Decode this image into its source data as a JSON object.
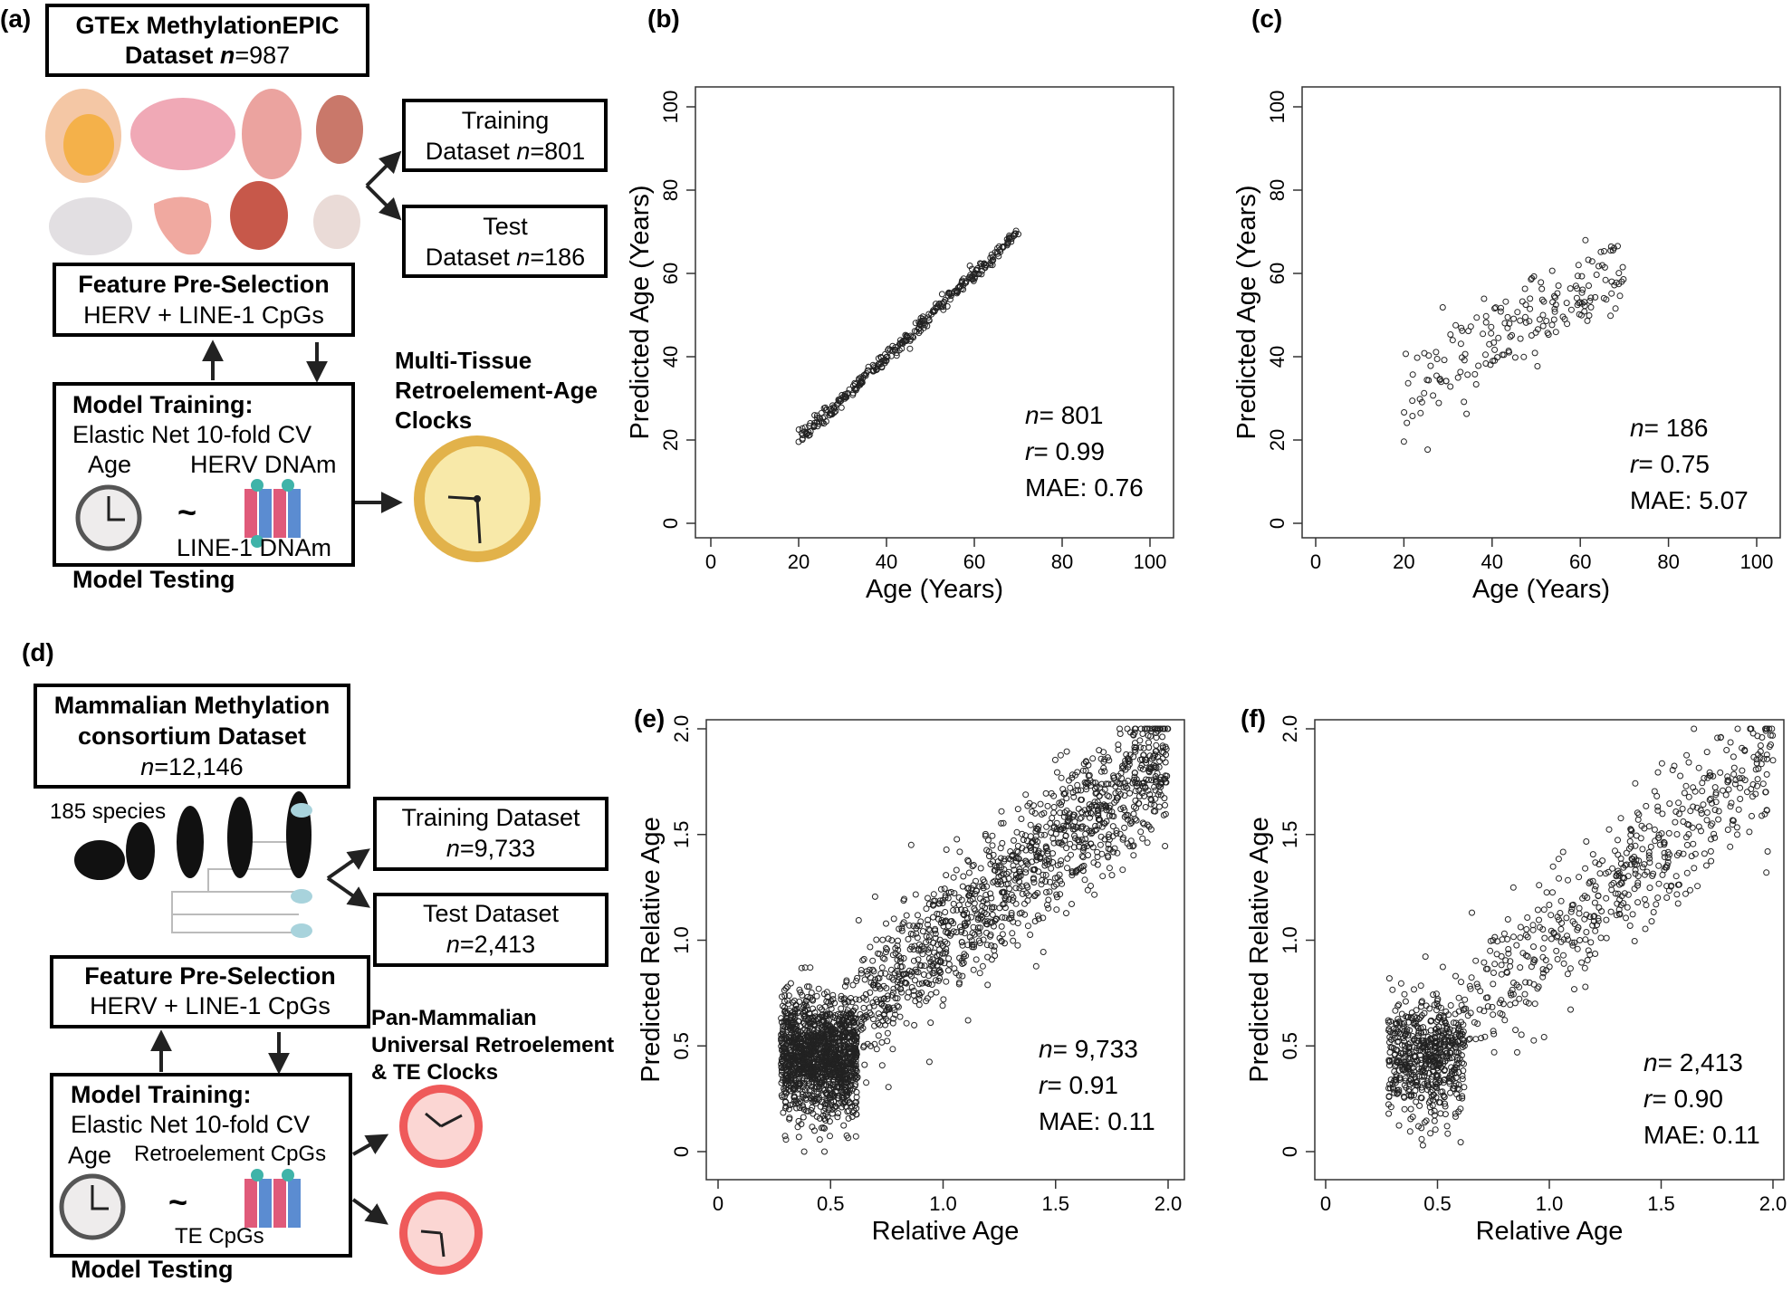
{
  "panel_labels": {
    "a": "(a)",
    "b": "(b)",
    "c": "(c)",
    "d": "(d)",
    "e": "(e)",
    "f": "(f)"
  },
  "workflow_a": {
    "dataset_line1": "GTEx MethylationEPIC",
    "dataset_line2_prefix": "Dataset ",
    "dataset_n": "n",
    "dataset_value": "=987",
    "training_line1": "Training",
    "training_line2_prefix": "Dataset ",
    "training_n": "n",
    "training_value": "=801",
    "test_line1": "Test",
    "test_line2_prefix": "Dataset ",
    "test_n": "n",
    "test_value": "=186",
    "feature_title": "Feature Pre-Selection",
    "feature_sub": "HERV + LINE-1 CpGs",
    "model_title": "Model Training:",
    "model_sub": "Elastic Net 10-fold CV",
    "age_label": "Age",
    "herv_label": "HERV DNAm",
    "tilde": "~",
    "line1_label": "LINE-1 DNAm",
    "model_testing": "Model Testing",
    "clock_title_1": "Multi-Tissue",
    "clock_title_2": "Retroelement-Age",
    "clock_title_3": "Clocks",
    "colors": {
      "clock_gold": "#e2b24a",
      "clock_face": "#f8e9a9",
      "tissue_pink": "#f0a9b6",
      "tissue_orange": "#f4b14a"
    }
  },
  "workflow_d": {
    "dataset_line1": "Mammalian Methylation",
    "dataset_line2": "consortium  Dataset",
    "dataset_n": "n",
    "dataset_value": "=12,146",
    "species": "185 species",
    "training_line1": "Training Dataset",
    "training_n": "n",
    "training_value": "=9,733",
    "test_line1": "Test Dataset",
    "test_n": "n",
    "test_value": "=2,413",
    "feature_title": "Feature Pre-Selection",
    "feature_sub": "HERV + LINE-1 CpGs",
    "model_title": "Model Training:",
    "model_sub": "Elastic Net 10-fold CV",
    "age_label": "Age",
    "retro_label": "Retroelement CpGs",
    "tilde": "~",
    "te_label": "TE CpGs",
    "model_testing": "Model Testing",
    "clock_title_1": "Pan-Mammalian",
    "clock_title_2": "Universal Retroelement",
    "clock_title_3": "& TE Clocks",
    "colors": {
      "clock_red": "#ef5a5a",
      "clock_face": "#fbd6d3",
      "species_blue": "#a8d3dc"
    }
  },
  "chart_data": [
    {
      "id": "b",
      "type": "scatter",
      "xlabel": "Age (Years)",
      "ylabel": "Predicted Age (Years)",
      "xlim": [
        0,
        100
      ],
      "ylim": [
        0,
        100
      ],
      "xticks": [
        "0",
        "20",
        "40",
        "60",
        "80",
        "100"
      ],
      "yticks": [
        "0",
        "20",
        "40",
        "60",
        "80",
        "100"
      ],
      "x_range": [
        20,
        70
      ],
      "slope": 1.0,
      "intercept": 0,
      "noise_sd": 0.9,
      "n_points": 320,
      "stats": {
        "n_label": "n",
        "n_value": "= 801",
        "r_label": "r",
        "r_value": "= 0.99",
        "mae": "MAE: 0.76"
      }
    },
    {
      "id": "c",
      "type": "scatter",
      "xlabel": "Age (Years)",
      "ylabel": "Predicted Age (Years)",
      "xlim": [
        0,
        100
      ],
      "ylim": [
        0,
        100
      ],
      "xticks": [
        "0",
        "20",
        "40",
        "60",
        "80",
        "100"
      ],
      "yticks": [
        "0",
        "20",
        "40",
        "60",
        "80",
        "100"
      ],
      "x_range": [
        20,
        70
      ],
      "slope": 0.62,
      "intercept": 18,
      "noise_sd": 5.5,
      "n_points": 186,
      "stats": {
        "n_label": "n",
        "n_value": "= 186",
        "r_label": "r",
        "r_value": "= 0.75",
        "mae": "MAE: 5.07"
      }
    },
    {
      "id": "e",
      "type": "scatter",
      "xlabel": "Relative Age",
      "ylabel": "Predicted Relative Age",
      "xlim": [
        0,
        2.0
      ],
      "ylim": [
        0,
        2.0
      ],
      "xticks": [
        "0",
        "0.5",
        "1.0",
        "1.5",
        "2.0"
      ],
      "yticks": [
        "0",
        "0.5",
        "1.0",
        "1.5",
        "2.0"
      ],
      "x_range": [
        0.28,
        2.0
      ],
      "slope": 0.88,
      "intercept": 0.12,
      "noise_sd": 0.16,
      "n_points": 2600,
      "stats": {
        "n_label": "n",
        "n_value": "= 9,733",
        "r_label": "r",
        "r_value": "= 0.91",
        "mae": "MAE: 0.11"
      }
    },
    {
      "id": "f",
      "type": "scatter",
      "xlabel": "Relative Age",
      "ylabel": "Predicted Relative Age",
      "xlim": [
        0,
        2.0
      ],
      "ylim": [
        0,
        2.0
      ],
      "xticks": [
        "0",
        "0.5",
        "1.0",
        "1.5",
        "2.0"
      ],
      "yticks": [
        "0",
        "0.5",
        "1.0",
        "1.5",
        "2.0"
      ],
      "x_range": [
        0.28,
        2.0
      ],
      "slope": 0.88,
      "intercept": 0.12,
      "noise_sd": 0.16,
      "n_points": 1100,
      "stats": {
        "n_label": "n",
        "n_value": "= 2,413",
        "r_label": "r",
        "r_value": "= 0.90",
        "mae": "MAE: 0.11"
      }
    }
  ]
}
